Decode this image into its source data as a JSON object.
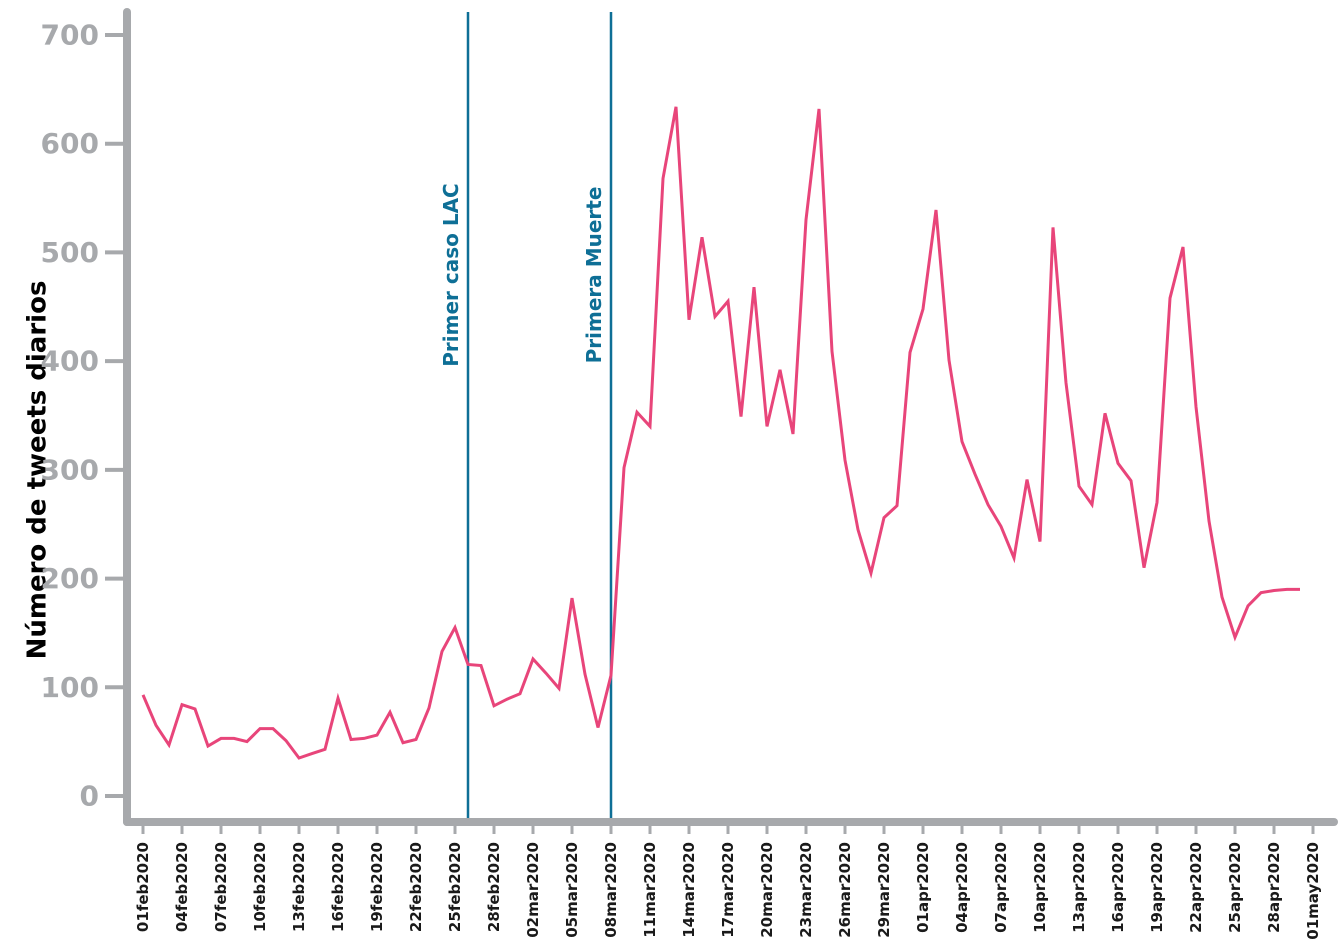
{
  "chart_data": {
    "type": "line",
    "title": "",
    "xlabel": "",
    "ylabel": "Número de tweets diarios",
    "ylim": [
      0,
      700
    ],
    "yticks": [
      0,
      100,
      200,
      300,
      400,
      500,
      600,
      700
    ],
    "grid": false,
    "xtick_labels": [
      "01feb2020",
      "04feb2020",
      "07feb2020",
      "10feb2020",
      "13feb2020",
      "16feb2020",
      "19feb2020",
      "22feb2020",
      "25feb2020",
      "28feb2020",
      "02mar2020",
      "05mar2020",
      "08mar2020",
      "11mar2020",
      "14mar2020",
      "17mar2020",
      "20mar2020",
      "23mar2020",
      "26mar2020",
      "29mar2020",
      "01apr2020",
      "04apr2020",
      "07apr2020",
      "10apr2020",
      "13apr2020",
      "16apr2020",
      "19apr2020",
      "22apr2020",
      "25apr2020",
      "28apr2020",
      "01may2020"
    ],
    "x_start": "01feb2020",
    "x": [
      "01feb2020",
      "02feb2020",
      "03feb2020",
      "04feb2020",
      "05feb2020",
      "06feb2020",
      "07feb2020",
      "08feb2020",
      "09feb2020",
      "10feb2020",
      "11feb2020",
      "12feb2020",
      "13feb2020",
      "14feb2020",
      "15feb2020",
      "16feb2020",
      "17feb2020",
      "18feb2020",
      "19feb2020",
      "20feb2020",
      "21feb2020",
      "22feb2020",
      "23feb2020",
      "24feb2020",
      "25feb2020",
      "26feb2020",
      "27feb2020",
      "28feb2020",
      "29feb2020",
      "01mar2020",
      "02mar2020",
      "03mar2020",
      "04mar2020",
      "05mar2020",
      "06mar2020",
      "07mar2020",
      "08mar2020",
      "09mar2020",
      "10mar2020",
      "11mar2020",
      "12mar2020",
      "13mar2020",
      "14mar2020",
      "15mar2020",
      "16mar2020",
      "17mar2020",
      "18mar2020",
      "19mar2020",
      "20mar2020",
      "21mar2020",
      "22mar2020",
      "23mar2020",
      "24mar2020",
      "25mar2020",
      "26mar2020",
      "27mar2020",
      "28mar2020",
      "29mar2020",
      "30mar2020",
      "31mar2020",
      "01apr2020",
      "02apr2020",
      "03apr2020",
      "04apr2020",
      "05apr2020",
      "06apr2020",
      "07apr2020",
      "08apr2020",
      "09apr2020",
      "10apr2020",
      "11apr2020",
      "12apr2020",
      "13apr2020",
      "14apr2020",
      "15apr2020",
      "16apr2020",
      "17apr2020",
      "18apr2020",
      "19apr2020",
      "20apr2020",
      "21apr2020",
      "22apr2020",
      "23apr2020",
      "24apr2020",
      "25apr2020",
      "26apr2020",
      "27apr2020",
      "28apr2020",
      "29apr2020",
      "30apr2020"
    ],
    "series": [
      {
        "color": "#e8457a",
        "values": [
          93,
          65,
          47,
          84,
          80,
          46,
          53,
          53,
          50,
          62,
          62,
          51,
          35,
          39,
          43,
          90,
          52,
          53,
          56,
          77,
          49,
          52,
          81,
          133,
          155,
          121,
          120,
          83,
          89,
          94,
          126,
          113,
          99,
          182,
          112,
          63,
          111,
          302,
          353,
          340,
          568,
          634,
          438,
          514,
          441,
          455,
          349,
          468,
          340,
          392,
          333,
          530,
          632,
          409,
          309,
          245,
          205,
          256,
          267,
          408,
          448,
          539,
          401,
          326,
          296,
          268,
          248,
          219,
          291,
          234,
          523,
          380,
          285,
          268,
          352,
          306,
          290,
          210,
          270,
          458,
          505,
          358,
          253,
          183,
          146,
          175,
          187,
          189,
          190,
          190
        ]
      }
    ],
    "annotations": [
      {
        "label": "Primer caso LAC",
        "x": "26feb2020",
        "color": "#0e6f96"
      },
      {
        "label": "Primera Muerte",
        "x": "08mar2020",
        "color": "#0e6f96"
      }
    ],
    "axis_color": "#a7a9ac"
  }
}
